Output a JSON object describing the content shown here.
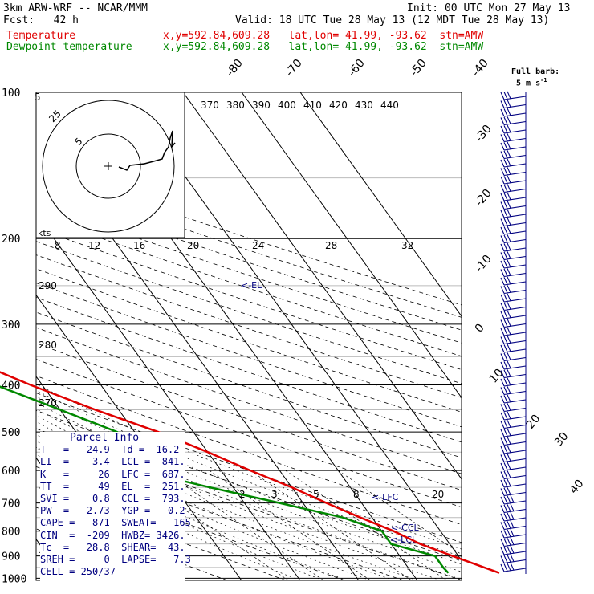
{
  "header": {
    "model": "3km ARW-WRF -- NCAR/MMM",
    "init": "Init: 00 UTC Mon 27 May 13",
    "fcst": "Fcst:   42 h",
    "valid": "Valid: 18 UTC Tue 28 May 13 (12 MDT Tue 28 May 13)"
  },
  "legend": {
    "temp_label": "Temperature",
    "dew_label": "Dewpoint temperature",
    "temp_info": "x,y=592.84,609.28   lat,lon= 41.99, -93.62  stn=AMW",
    "dew_info": "x,y=592.84,609.28   lat,lon= 41.99, -93.62  stn=AMW",
    "temp_color": "#e00000",
    "dew_color": "#008800",
    "barb_color": "#000080"
  },
  "barb_key": {
    "line1": "Full barb:",
    "line2": "5 m s",
    "sup": "-1"
  },
  "parcel": {
    "title": "Parcel Info",
    "rows": [
      "T   =   24.9  Td =  16.2",
      "LI  =   -3.4  LCL =  841.",
      "K   =     26  LFC =  687.",
      "TT  =     49  EL  =  251.",
      "SVI =    0.8  CCL =  793.",
      "PW  =   2.73  YGP =   0.2",
      "CAPE =   871  SWEAT=   165",
      "CIN  =  -209  HWBZ= 3426.",
      "Tc  =   28.8  SHEAR=  43.",
      "SREH =     0  LAPSE=   7.3",
      "CELL = 250/37"
    ]
  },
  "hodograph": {
    "units": "kts",
    "ring_labels": [
      "5",
      "25",
      "5"
    ]
  },
  "markers": {
    "el": "<-EL",
    "lfc": "<-LFC",
    "ccl": "<-CCL",
    "lcl": "<-LCL"
  },
  "chart_data": {
    "type": "line",
    "ylabel": "",
    "pressure_ticks": [
      100,
      200,
      300,
      400,
      500,
      600,
      700,
      800,
      900,
      1000
    ],
    "isotherm_labels": [
      "-80",
      "-70",
      "-60",
      "-50",
      "-40",
      "-30",
      "-20",
      "-10",
      "0",
      "10",
      "20",
      "30",
      "40"
    ],
    "theta_e_labels": [
      "370",
      "380",
      "390",
      "400",
      "410",
      "420",
      "430",
      "440"
    ],
    "theta_labels": [
      "290",
      "280",
      "270"
    ],
    "mixing_ratio_labels": [
      "2",
      "3",
      "5",
      "8",
      "20"
    ],
    "upper_labels": [
      "8",
      "12",
      "16",
      "20",
      "24",
      "28",
      "32"
    ],
    "series": [
      {
        "name": "Temperature",
        "points": [
          [
            100,
            -58
          ],
          [
            120,
            -58
          ],
          [
            150,
            -60
          ],
          [
            175,
            -61
          ],
          [
            200,
            -61
          ],
          [
            250,
            -58
          ],
          [
            300,
            -50
          ],
          [
            350,
            -40
          ],
          [
            400,
            -32
          ],
          [
            450,
            -24
          ],
          [
            500,
            -16
          ],
          [
            550,
            -10
          ],
          [
            600,
            -5
          ],
          [
            650,
            0
          ],
          [
            700,
            4
          ],
          [
            750,
            8
          ],
          [
            800,
            12
          ],
          [
            850,
            15
          ],
          [
            900,
            19
          ],
          [
            950,
            23
          ],
          [
            975,
            24.9
          ]
        ]
      },
      {
        "name": "Dewpoint temperature",
        "points": [
          [
            100,
            -70
          ],
          [
            150,
            -71
          ],
          [
            200,
            -76
          ],
          [
            250,
            -82
          ],
          [
            300,
            -50
          ],
          [
            350,
            -45
          ],
          [
            400,
            -38
          ],
          [
            450,
            -30
          ],
          [
            500,
            -23
          ],
          [
            550,
            -20
          ],
          [
            600,
            -24
          ],
          [
            650,
            -14
          ],
          [
            700,
            -4
          ],
          [
            750,
            5
          ],
          [
            800,
            10
          ],
          [
            850,
            10
          ],
          [
            900,
            16
          ],
          [
            950,
            16
          ],
          [
            975,
            16.2
          ]
        ]
      }
    ]
  }
}
